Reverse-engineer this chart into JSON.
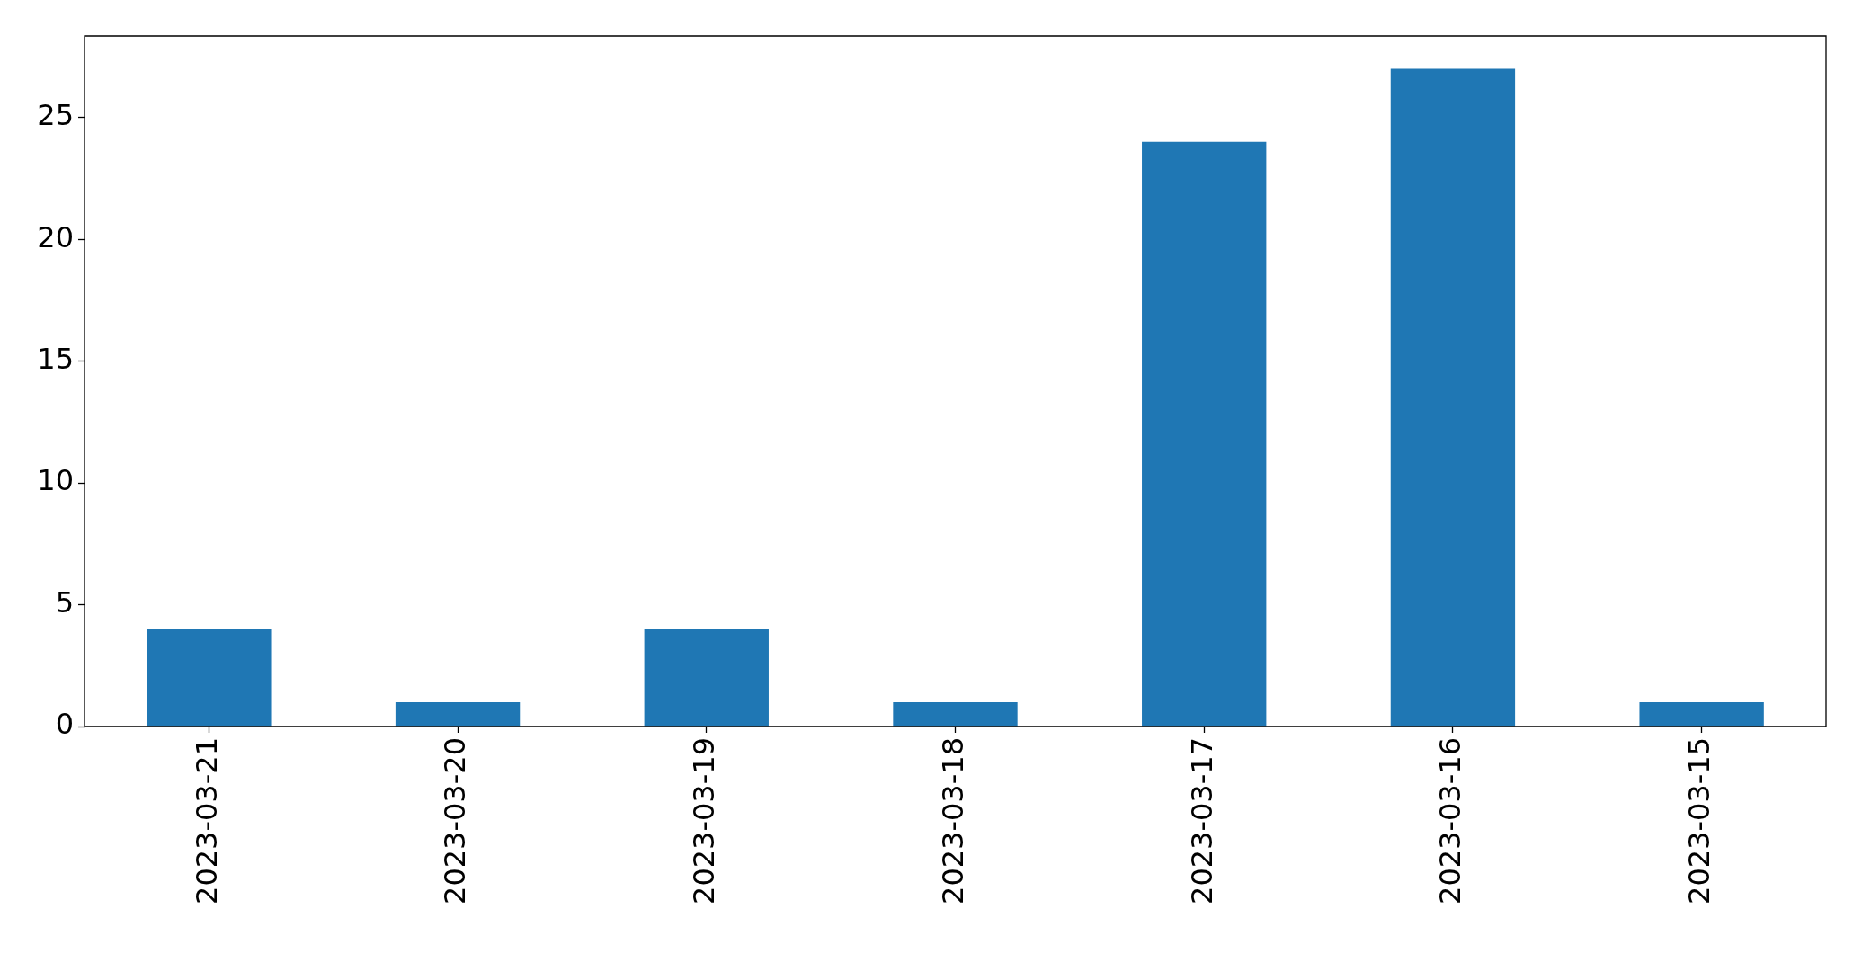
{
  "chart_data": {
    "type": "bar",
    "categories": [
      "2023-03-21",
      "2023-03-20",
      "2023-03-19",
      "2023-03-18",
      "2023-03-17",
      "2023-03-16",
      "2023-03-15"
    ],
    "values": [
      4,
      1,
      4,
      1,
      24,
      27,
      1
    ],
    "color": "#1f77b4",
    "ylim": [
      0,
      28.35
    ],
    "yticks": [
      0,
      5,
      10,
      15,
      20,
      25
    ],
    "grid": false
  }
}
